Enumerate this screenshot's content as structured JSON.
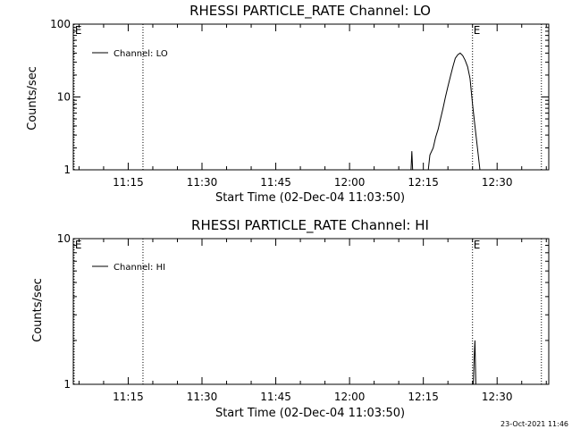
{
  "chart_data": [
    {
      "type": "line",
      "title": "RHESSI PARTICLE_RATE Channel: LO",
      "xlabel": "Start Time (02-Dec-04 11:03:50)",
      "ylabel": "Counts/sec",
      "x_unit": "minutes of day",
      "xlim": [
        "11:03:50",
        "12:40:30"
      ],
      "xticks": [
        "11:15",
        "11:30",
        "11:45",
        "12:00",
        "12:15",
        "12:30"
      ],
      "y_scale": "log",
      "ylim": [
        1,
        100
      ],
      "yticks": [
        "1",
        "10",
        "100"
      ],
      "legend": [
        "Channel: LO"
      ],
      "legend_position": "top-left",
      "markers": [
        {
          "label": "E",
          "x": "11:04"
        },
        {
          "label": "",
          "x": "11:18"
        },
        {
          "label": "E",
          "x": "12:25"
        },
        {
          "label": "",
          "x": "12:39"
        }
      ],
      "series": [
        {
          "name": "Channel: LO",
          "segments": [
            [
              [
                "12:12:30",
                1.0
              ],
              [
                "12:12:40",
                1.8
              ],
              [
                "12:12:50",
                1.0
              ]
            ],
            [
              [
                "12:16:00",
                1.0
              ],
              [
                "12:16:20",
                1.6
              ],
              [
                "12:17:00",
                2.0
              ],
              [
                "12:17:30",
                2.8
              ],
              [
                "12:18:00",
                3.6
              ],
              [
                "12:18:30",
                5.0
              ],
              [
                "12:19:00",
                7.0
              ],
              [
                "12:19:30",
                10.0
              ],
              [
                "12:20:00",
                14.0
              ],
              [
                "12:20:30",
                19.0
              ],
              [
                "12:21:00",
                26.0
              ],
              [
                "12:21:30",
                34.0
              ],
              [
                "12:22:00",
                38.0
              ],
              [
                "12:22:30",
                40.0
              ],
              [
                "12:23:00",
                37.0
              ],
              [
                "12:23:30",
                32.0
              ],
              [
                "12:24:00",
                26.0
              ],
              [
                "12:24:30",
                18.0
              ],
              [
                "12:25:00",
                8.0
              ],
              [
                "12:25:30",
                4.0
              ],
              [
                "12:26:00",
                2.0
              ],
              [
                "12:26:30",
                1.0
              ]
            ]
          ]
        }
      ]
    },
    {
      "type": "line",
      "title": "RHESSI PARTICLE_RATE Channel: HI",
      "xlabel": "Start Time (02-Dec-04 11:03:50)",
      "ylabel": "Counts/sec",
      "x_unit": "minutes of day",
      "xlim": [
        "11:03:50",
        "12:40:30"
      ],
      "xticks": [
        "11:15",
        "11:30",
        "11:45",
        "12:00",
        "12:15",
        "12:30"
      ],
      "y_scale": "log",
      "ylim": [
        1,
        10
      ],
      "yticks": [
        "1",
        "10"
      ],
      "legend": [
        "Channel: HI"
      ],
      "legend_position": "top-left",
      "markers": [
        {
          "label": "E",
          "x": "11:04"
        },
        {
          "label": "",
          "x": "11:18"
        },
        {
          "label": "E",
          "x": "12:25"
        },
        {
          "label": "",
          "x": "12:39"
        }
      ],
      "series": [
        {
          "name": "Channel: HI",
          "segments": [
            [
              [
                "12:25:10",
                1.0
              ],
              [
                "12:25:20",
                1.5
              ],
              [
                "12:25:30",
                2.0
              ],
              [
                "12:25:40",
                1.0
              ]
            ]
          ]
        }
      ]
    }
  ],
  "timestamp": "23-Oct-2021 11:46",
  "colors": {
    "background": "#ffffff",
    "foreground": "#000000"
  }
}
